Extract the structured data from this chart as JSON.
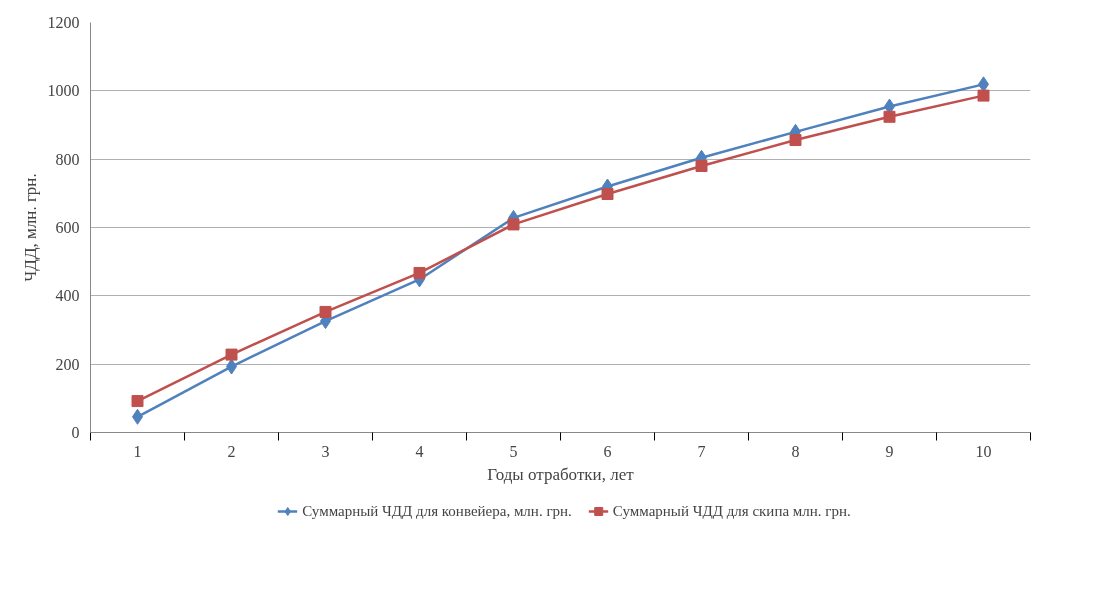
{
  "chart_data": {
    "type": "line",
    "xlabel": "Годы отработки, лет",
    "ylabel": "ЧДД, млн. грн.",
    "categories": [
      "1",
      "2",
      "3",
      "4",
      "5",
      "6",
      "7",
      "8",
      "9",
      "10"
    ],
    "series": [
      {
        "name": "Суммарный ЧДД для конвейера, млн. грн.",
        "color": "#4f81bd",
        "marker": "diamond",
        "values": [
          46,
          193,
          326,
          448,
          628,
          720,
          804,
          880,
          954,
          1019
        ]
      },
      {
        "name": "Суммарный ЧДД для скипа млн. грн.",
        "color": "#c0504d",
        "marker": "square",
        "values": [
          92,
          228,
          353,
          467,
          609,
          698,
          780,
          856,
          924,
          986
        ]
      }
    ],
    "ylim": [
      0,
      1200
    ],
    "yticks": [
      0,
      200,
      400,
      600,
      800,
      1000,
      1200
    ],
    "grid": "y",
    "legend": "bottom",
    "line_style": "solid"
  }
}
